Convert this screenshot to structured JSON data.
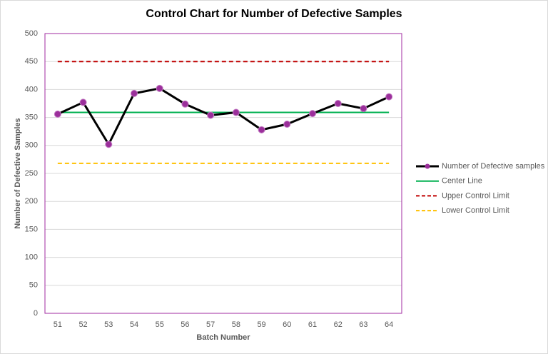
{
  "chart_data": {
    "type": "line",
    "title": "Control Chart for Number of Defective Samples",
    "x_label": "Batch Number",
    "y_label": "Number of Defective Samples",
    "categories": [
      "51",
      "52",
      "53",
      "54",
      "55",
      "56",
      "57",
      "58",
      "59",
      "60",
      "61",
      "62",
      "63",
      "64"
    ],
    "series": [
      {
        "name": "Number of Defective samples",
        "color": "#000000",
        "marker_color": "#9b2f9b",
        "dashed": false,
        "values": [
          356,
          377,
          302,
          393,
          402,
          374,
          354,
          359,
          328,
          338,
          357,
          375,
          366,
          387
        ]
      },
      {
        "name": "Center Line",
        "color": "#00b050",
        "dashed": false,
        "values": [
          359,
          359,
          359,
          359,
          359,
          359,
          359,
          359,
          359,
          359,
          359,
          359,
          359,
          359
        ]
      },
      {
        "name": "Upper Control Limit",
        "color": "#c00000",
        "dashed": true,
        "values": [
          450,
          450,
          450,
          450,
          450,
          450,
          450,
          450,
          450,
          450,
          450,
          450,
          450,
          450
        ]
      },
      {
        "name": "Lower Control Limit",
        "color": "#ffc000",
        "dashed": true,
        "values": [
          268,
          268,
          268,
          268,
          268,
          268,
          268,
          268,
          268,
          268,
          268,
          268,
          268,
          268
        ]
      }
    ],
    "ylim": [
      0,
      500
    ],
    "yticks": [
      0,
      50,
      100,
      150,
      200,
      250,
      300,
      350,
      400,
      450,
      500
    ],
    "grid": true,
    "legend": "right"
  }
}
